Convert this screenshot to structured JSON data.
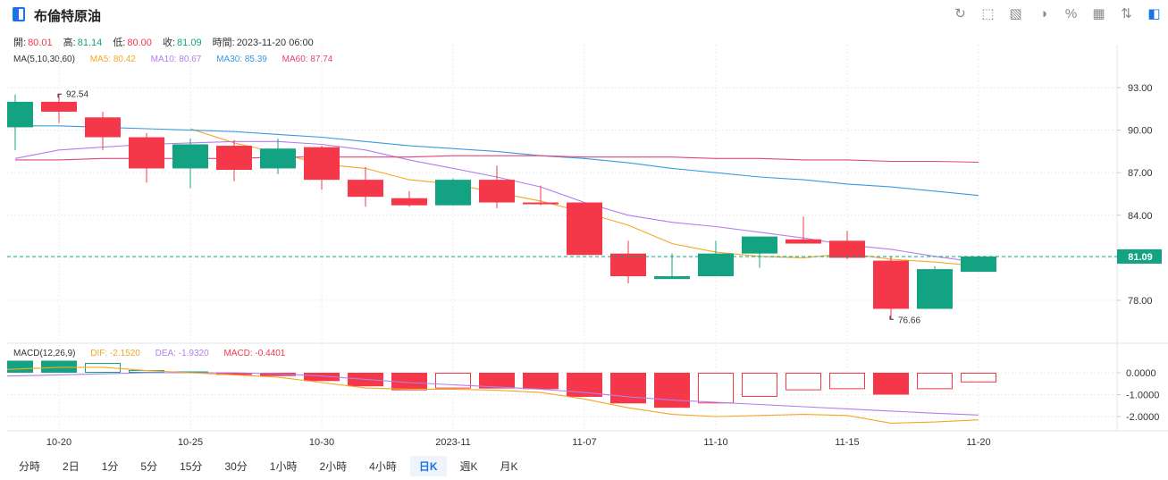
{
  "header": {
    "title": "布倫特原油"
  },
  "toolbar": [
    "refresh-icon",
    "draw-icon",
    "image-icon",
    "compare-icon",
    "percent-icon",
    "grid-icon",
    "sort-icon",
    "fullscreen-icon"
  ],
  "ohlc": {
    "open_label": "開:",
    "open": "80.01",
    "high_label": "高:",
    "high": "81.14",
    "low_label": "低:",
    "low": "80.00",
    "close_label": "收:",
    "close": "81.09",
    "time_label": "時間:",
    "time": "2023-11-20 06:00"
  },
  "ma_legend": {
    "title": "MA(5,10,30,60)",
    "ma5": "MA5: 80.42",
    "ma10": "MA10: 80.67",
    "ma30": "MA30: 85.39",
    "ma60": "MA60: 87.74"
  },
  "macd_legend": {
    "title": "MACD(12,26,9)",
    "dif": "DIF: -2.1520",
    "dea": "DEA: -1.9320",
    "macd": "MACD: -0.4401"
  },
  "periods": [
    "分時",
    "2日",
    "1分",
    "5分",
    "15分",
    "30分",
    "1小時",
    "2小時",
    "4小時",
    "日K",
    "週K",
    "月K"
  ],
  "active_period": "日K",
  "colors": {
    "up": "#13a383",
    "down": "#f5374a",
    "ma5": "#f5a623",
    "ma10": "#b37feb",
    "ma30": "#3a9ae0",
    "ma60": "#e0457b"
  },
  "chart_data": {
    "type": "candlestick",
    "price_axis": {
      "ticks": [
        93.0,
        90.0,
        87.0,
        84.0,
        81.0,
        78.0
      ],
      "tick_labels": [
        "93.00",
        "90.00",
        "87.00",
        "84.00",
        "81.00",
        "78.00"
      ]
    },
    "last_price": "81.09",
    "high_annotation": "92.54",
    "low_annotation": "76.66",
    "x_tick_labels": [
      {
        "index": 1,
        "label": "10-20"
      },
      {
        "index": 4,
        "label": "10-25"
      },
      {
        "index": 7,
        "label": "10-30"
      },
      {
        "index": 10,
        "label": "2023-11"
      },
      {
        "index": 13,
        "label": "11-07"
      },
      {
        "index": 16,
        "label": "11-10"
      },
      {
        "index": 19,
        "label": "11-15"
      },
      {
        "index": 22,
        "label": "11-20"
      }
    ],
    "candles": [
      {
        "o": 90.2,
        "h": 92.5,
        "l": 88.6,
        "c": 92.0
      },
      {
        "o": 92.0,
        "h": 92.54,
        "l": 90.5,
        "c": 91.3
      },
      {
        "o": 90.9,
        "h": 91.3,
        "l": 88.6,
        "c": 89.5
      },
      {
        "o": 89.5,
        "h": 89.8,
        "l": 86.3,
        "c": 87.3
      },
      {
        "o": 87.3,
        "h": 89.4,
        "l": 85.9,
        "c": 89.0
      },
      {
        "o": 88.9,
        "h": 89.3,
        "l": 86.4,
        "c": 87.2
      },
      {
        "o": 87.3,
        "h": 89.4,
        "l": 86.9,
        "c": 88.7
      },
      {
        "o": 88.8,
        "h": 88.9,
        "l": 85.8,
        "c": 86.5
      },
      {
        "o": 86.5,
        "h": 87.4,
        "l": 84.6,
        "c": 85.3
      },
      {
        "o": 85.2,
        "h": 85.7,
        "l": 84.6,
        "c": 84.7
      },
      {
        "o": 84.7,
        "h": 86.6,
        "l": 84.7,
        "c": 86.5
      },
      {
        "o": 86.5,
        "h": 87.5,
        "l": 84.5,
        "c": 84.9
      },
      {
        "o": 84.9,
        "h": 86.1,
        "l": 84.7,
        "c": 84.8
      },
      {
        "o": 84.9,
        "h": 84.9,
        "l": 81.2,
        "c": 81.2
      },
      {
        "o": 81.3,
        "h": 82.2,
        "l": 79.2,
        "c": 79.7
      },
      {
        "o": 79.5,
        "h": 81.3,
        "l": 79.5,
        "c": 79.7
      },
      {
        "o": 79.7,
        "h": 82.2,
        "l": 79.7,
        "c": 81.3
      },
      {
        "o": 81.3,
        "h": 82.5,
        "l": 80.3,
        "c": 82.5
      },
      {
        "o": 82.3,
        "h": 83.9,
        "l": 82.0,
        "c": 82.0
      },
      {
        "o": 82.2,
        "h": 82.9,
        "l": 80.9,
        "c": 81.0
      },
      {
        "o": 80.8,
        "h": 81.1,
        "l": 76.66,
        "c": 77.4
      },
      {
        "o": 77.4,
        "h": 80.4,
        "l": 77.4,
        "c": 80.2
      },
      {
        "o": 80.01,
        "h": 81.14,
        "l": 80.0,
        "c": 81.09
      }
    ],
    "series": [
      {
        "name": "MA5",
        "values": [
          null,
          null,
          null,
          null,
          90.1,
          89.1,
          88.4,
          87.6,
          87.3,
          86.5,
          86.2,
          85.6,
          85.0,
          84.2,
          83.3,
          82.0,
          81.4,
          81.1,
          81.0,
          81.3,
          80.9,
          80.7,
          80.42
        ]
      },
      {
        "name": "MA10",
        "values": [
          88.0,
          88.6,
          88.8,
          89.0,
          89.1,
          89.2,
          89.2,
          89.0,
          88.6,
          87.9,
          87.3,
          86.7,
          86.0,
          84.9,
          84.0,
          83.5,
          83.2,
          82.8,
          82.4,
          81.9,
          81.6,
          81.1,
          80.67
        ]
      },
      {
        "name": "MA30",
        "values": [
          90.3,
          90.3,
          90.2,
          90.1,
          90.0,
          89.9,
          89.7,
          89.5,
          89.2,
          88.9,
          88.7,
          88.5,
          88.2,
          88.0,
          87.7,
          87.3,
          87.0,
          86.7,
          86.5,
          86.2,
          86.0,
          85.7,
          85.39
        ]
      },
      {
        "name": "MA60",
        "values": [
          87.9,
          87.9,
          88.0,
          88.0,
          88.0,
          88.0,
          88.1,
          88.1,
          88.1,
          88.1,
          88.2,
          88.2,
          88.2,
          88.1,
          88.1,
          88.1,
          88.0,
          88.0,
          87.9,
          87.9,
          87.8,
          87.8,
          87.74
        ]
      }
    ],
    "macd": {
      "ticks": [
        0.0,
        -1.0,
        -2.0
      ],
      "tick_labels": [
        "0.0000",
        "-1.0000",
        "-2.0000"
      ],
      "hist": [
        0.55,
        0.55,
        0.45,
        0.12,
        0.06,
        -0.1,
        -0.15,
        -0.38,
        -0.62,
        -0.8,
        -0.72,
        -0.72,
        -0.75,
        -1.1,
        -1.4,
        -1.6,
        -1.4,
        -1.1,
        -0.8,
        -0.75,
        -1.0,
        -0.75,
        -0.44
      ],
      "dif": [
        0.15,
        0.25,
        0.25,
        0.1,
        0.0,
        -0.1,
        -0.2,
        -0.45,
        -0.7,
        -0.75,
        -0.75,
        -0.8,
        -0.9,
        -1.2,
        -1.6,
        -1.9,
        -2.0,
        -1.95,
        -1.9,
        -1.95,
        -2.3,
        -2.25,
        -2.152
      ],
      "dea": [
        -0.15,
        -0.1,
        -0.05,
        0.0,
        0.0,
        0.0,
        -0.05,
        -0.15,
        -0.3,
        -0.45,
        -0.55,
        -0.65,
        -0.75,
        -0.9,
        -1.1,
        -1.25,
        -1.35,
        -1.45,
        -1.55,
        -1.65,
        -1.75,
        -1.85,
        -1.932
      ]
    }
  }
}
